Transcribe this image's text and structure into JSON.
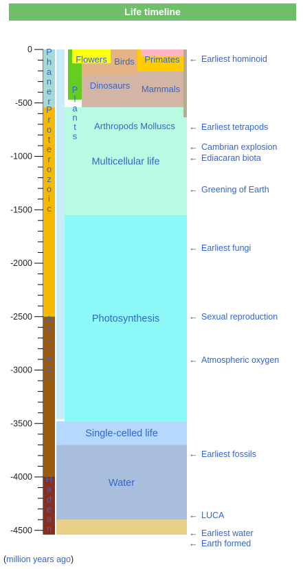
{
  "title": "Life timeline",
  "footer": {
    "open": "(",
    "link": "million years ago",
    "close": ")"
  },
  "axis": {
    "ticks": [
      {
        "value": 0,
        "label": "0"
      },
      {
        "value": -500,
        "label": "-500"
      },
      {
        "value": -1000,
        "label": "-1000"
      },
      {
        "value": -1500,
        "label": "-1500"
      },
      {
        "value": -2000,
        "label": "-2000"
      },
      {
        "value": -2500,
        "label": "-2500"
      },
      {
        "value": -3000,
        "label": "-3000"
      },
      {
        "value": -3500,
        "label": "-3500"
      },
      {
        "value": -4000,
        "label": "-4000"
      },
      {
        "value": -4500,
        "label": "-4500"
      }
    ],
    "minor_step": 100
  },
  "eons": [
    {
      "name": "Phanerozoic",
      "start": -541,
      "end": 0,
      "color": "#a5d8d6"
    },
    {
      "name": "Proterozoic",
      "start": -2500,
      "end": -541,
      "color": "#f7b800"
    },
    {
      "name": "Archean",
      "start": -4000,
      "end": -2500,
      "color": "#9b5a0c"
    },
    {
      "name": "Hadean",
      "start": -4540,
      "end": -4000,
      "color": "#8a2f20"
    }
  ],
  "stages": [
    {
      "name": "Water",
      "start": -4400,
      "end": -3700,
      "color": "#a9bddc"
    },
    {
      "name": "Single-celled life",
      "start": -3700,
      "end": -3480,
      "color": "#b5d8ff"
    },
    {
      "name": "Photosynthesis",
      "start": -3480,
      "end": -1550,
      "color": "#8cf8f8"
    },
    {
      "name": "Multicellular life",
      "start": -1550,
      "end": -540,
      "color": "#b8fbe2"
    }
  ],
  "groups": [
    {
      "name": "Plants",
      "start": -470,
      "end": 0,
      "color": "#66cc22"
    },
    {
      "name": "Flowers",
      "start": -130,
      "end": 0,
      "color": "#ffff11"
    },
    {
      "name": "Arthropods Molluscs",
      "start": -540,
      "end": -200,
      "color": "#d2b5a5"
    },
    {
      "name": "Dinosaurs",
      "start": -240,
      "end": -66,
      "color": "#e4b484"
    },
    {
      "name": "Birds",
      "start": -150,
      "end": 0,
      "color": "#e4b484"
    },
    {
      "name": "Mammals",
      "start": -200,
      "end": 0,
      "color": "#ffcc00"
    },
    {
      "name": "Primates",
      "start": -66,
      "end": 0,
      "color": "#ffb6c1"
    }
  ],
  "events": [
    {
      "label": "Earliest hominoid",
      "value": -25
    },
    {
      "label": "Earliest tetrapods",
      "value": -375
    },
    {
      "label": "Cambrian explosion",
      "value": -538
    },
    {
      "label": "Ediacaran biota",
      "value": -600
    },
    {
      "label": "Greening of Earth",
      "value": -850
    },
    {
      "label": "Earliest fungi",
      "value": -1300
    },
    {
      "label": "Sexual reproduction",
      "value": -2000
    },
    {
      "label": "Atmospheric oxygen",
      "value": -2450
    },
    {
      "label": "Earliest fossils",
      "value": -3500
    },
    {
      "label": "LUCA",
      "value": -4200
    },
    {
      "label": "Earliest water",
      "value": -4400
    },
    {
      "label": "Earth formed",
      "value": -4540
    }
  ],
  "colors": {
    "background_strip": "#c8ecf8",
    "earth_band": "#e8d088",
    "ediacaran_strip": "#b8ac90",
    "link": "#3366cc",
    "title_bar": "#6fbe6a"
  }
}
